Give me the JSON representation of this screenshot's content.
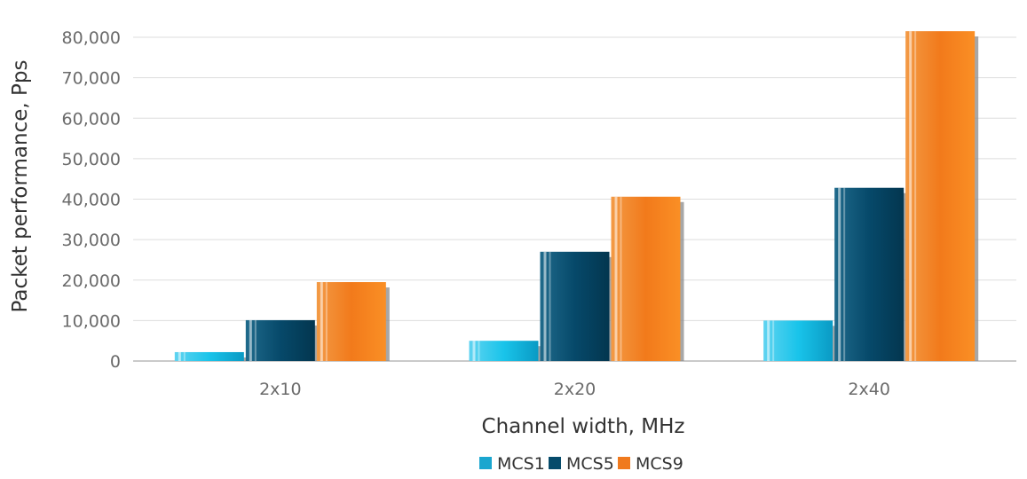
{
  "chart_data": {
    "type": "bar",
    "xlabel": "Channel width, MHz",
    "ylabel": "Packet performance, Pps",
    "categories": [
      "2x10",
      "2x20",
      "2x40"
    ],
    "ylim": [
      0,
      80000
    ],
    "yticks": [
      0,
      10000,
      20000,
      30000,
      40000,
      50000,
      60000,
      70000,
      80000
    ],
    "ytick_labels": [
      "0",
      "10,000",
      "20,000",
      "30,000",
      "40,000",
      "50,000",
      "60,000",
      "70,000",
      "80,000"
    ],
    "grid": true,
    "legend_position": "bottom-center",
    "series": [
      {
        "name": "MCS1",
        "color": "#1aa6cf",
        "values": [
          2200,
          5000,
          10000
        ]
      },
      {
        "name": "MCS5",
        "color": "#064b6b",
        "values": [
          10100,
          27000,
          42800
        ]
      },
      {
        "name": "MCS9",
        "color": "#f07a1e",
        "values": [
          19500,
          40600,
          81500
        ]
      }
    ]
  }
}
